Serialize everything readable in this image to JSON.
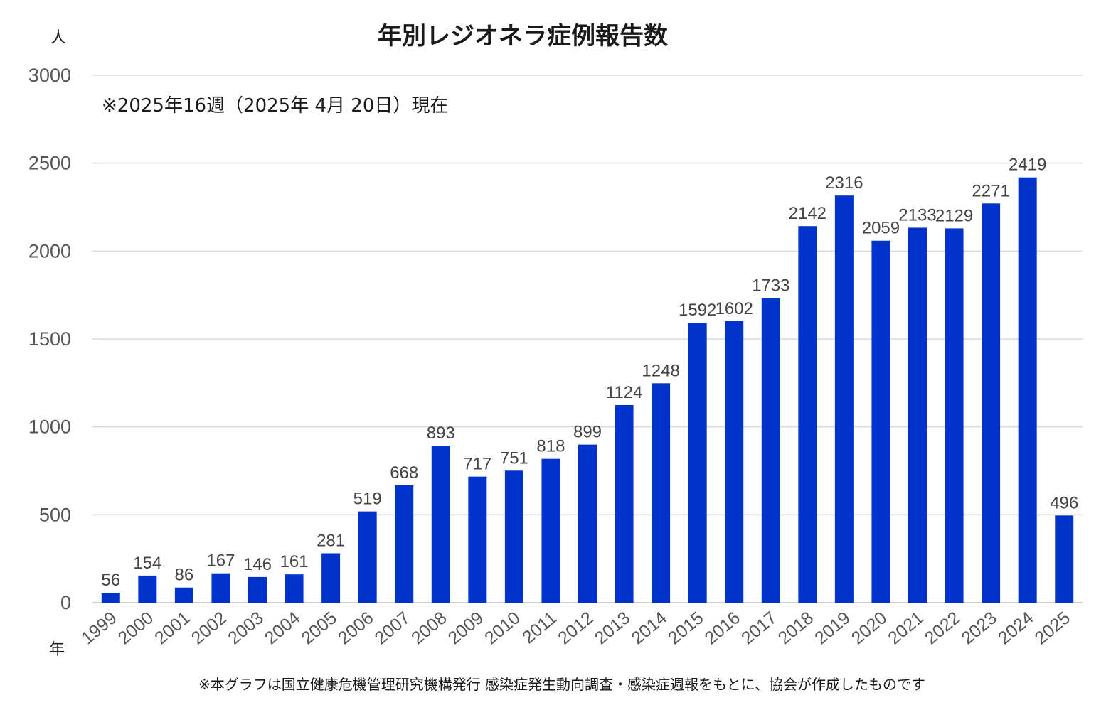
{
  "chart_data": {
    "type": "bar",
    "title": "年別レジオネラ症例報告数",
    "ylabel": "人",
    "xlabel": "年",
    "note": "※2025年16週（2025年 4月 20日）現在",
    "source": "※本グラフは国立健康危機管理研究機構発行 感染症発生動向調査・感染症週報をもとに、協会が作成したものです",
    "ylim": [
      0,
      3000
    ],
    "yticks": [
      0,
      500,
      1000,
      1500,
      2000,
      2500,
      3000
    ],
    "grid": true,
    "legend": "none",
    "bar_color": "#0033CC",
    "categories": [
      "1999",
      "2000",
      "2001",
      "2002",
      "2003",
      "2004",
      "2005",
      "2006",
      "2007",
      "2008",
      "2009",
      "2010",
      "2011",
      "2012",
      "2013",
      "2014",
      "2015",
      "2016",
      "2017",
      "2018",
      "2019",
      "2020",
      "2021",
      "2022",
      "2023",
      "2024",
      "2025"
    ],
    "values": [
      56,
      154,
      86,
      167,
      146,
      161,
      281,
      519,
      668,
      893,
      717,
      751,
      818,
      899,
      1124,
      1248,
      1592,
      1602,
      1733,
      2142,
      2316,
      2059,
      2133,
      2129,
      2271,
      2419,
      496
    ]
  }
}
